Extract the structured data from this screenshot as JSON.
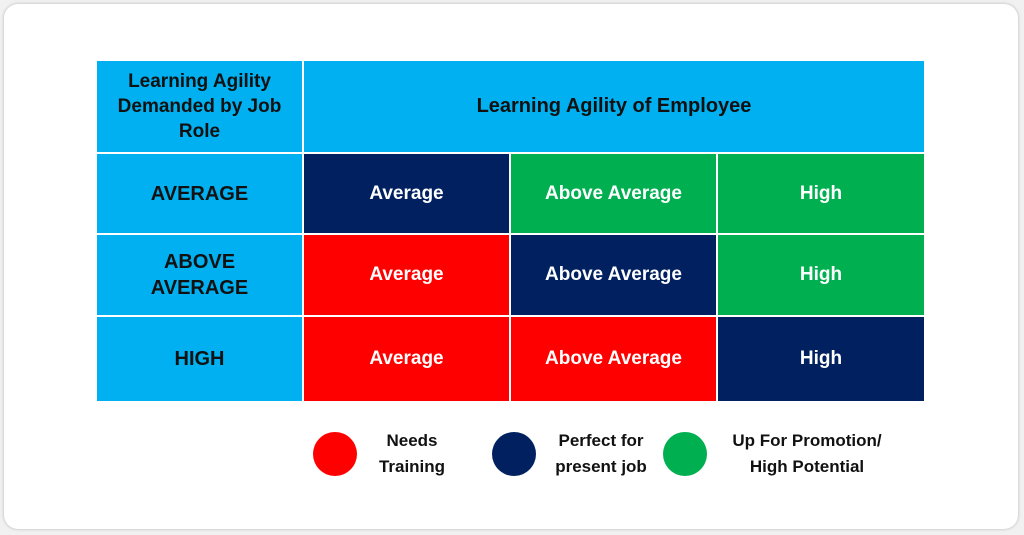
{
  "colors": {
    "header_blue": "#00b0f0",
    "needs_training_red": "#ff0000",
    "perfect_fit_navy": "#002060",
    "promotion_green": "#00b050"
  },
  "matrix": {
    "corner_header": "Learning Agility Demanded by Job Role",
    "column_header": "Learning Agility of Employee",
    "rows": [
      {
        "label": "AVERAGE",
        "cells": [
          {
            "text": "Average",
            "status": "perfect"
          },
          {
            "text": "Above Average",
            "status": "promotion"
          },
          {
            "text": "High",
            "status": "promotion"
          }
        ]
      },
      {
        "label": "ABOVE AVERAGE",
        "cells": [
          {
            "text": "Average",
            "status": "training"
          },
          {
            "text": "Above Average",
            "status": "perfect"
          },
          {
            "text": "High",
            "status": "promotion"
          }
        ]
      },
      {
        "label": "HIGH",
        "cells": [
          {
            "text": "Average",
            "status": "training"
          },
          {
            "text": "Above Average",
            "status": "training"
          },
          {
            "text": "High",
            "status": "perfect"
          }
        ]
      }
    ]
  },
  "legend": [
    {
      "label": "Needs Training",
      "status": "training"
    },
    {
      "label": "Perfect for present job",
      "status": "perfect"
    },
    {
      "label": "Up For Promotion/ High Potential",
      "status": "promotion"
    }
  ]
}
